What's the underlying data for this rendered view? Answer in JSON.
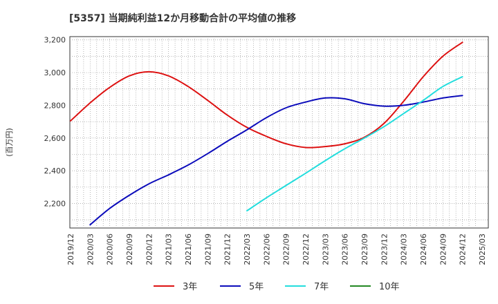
{
  "chart_data": {
    "type": "line",
    "title": "[5357]  当期純利益12か月移動合計の平均値の推移",
    "ylabel": "(百万円)",
    "xlabel": "",
    "x_ticks": [
      "2019/12",
      "2020/03",
      "2020/06",
      "2020/09",
      "2020/12",
      "2021/03",
      "2021/06",
      "2021/09",
      "2021/12",
      "2022/03",
      "2022/06",
      "2022/09",
      "2022/12",
      "2023/03",
      "2023/06",
      "2023/09",
      "2023/12",
      "2024/03",
      "2024/06",
      "2024/09",
      "2024/12",
      "2025/03"
    ],
    "y_ticks": [
      "2,200",
      "2,400",
      "2,600",
      "2,800",
      "3,000",
      "3,200"
    ],
    "ylim": [
      2050,
      3220
    ],
    "grid": true,
    "legend_position": "bottom",
    "series": [
      {
        "name": "3年",
        "color": "#dd1111",
        "points": [
          [
            "2019/12",
            2705
          ],
          [
            "2020/03",
            2815
          ],
          [
            "2020/06",
            2910
          ],
          [
            "2020/09",
            2980
          ],
          [
            "2020/12",
            3005
          ],
          [
            "2021/03",
            2980
          ],
          [
            "2021/06",
            2915
          ],
          [
            "2021/09",
            2830
          ],
          [
            "2021/12",
            2740
          ],
          [
            "2022/03",
            2665
          ],
          [
            "2022/06",
            2610
          ],
          [
            "2022/09",
            2565
          ],
          [
            "2022/12",
            2542
          ],
          [
            "2023/03",
            2548
          ],
          [
            "2023/06",
            2565
          ],
          [
            "2023/09",
            2605
          ],
          [
            "2023/12",
            2690
          ],
          [
            "2024/03",
            2825
          ],
          [
            "2024/06",
            2975
          ],
          [
            "2024/09",
            3100
          ],
          [
            "2024/12",
            3185
          ]
        ]
      },
      {
        "name": "5年",
        "color": "#0b0bbb",
        "points": [
          [
            "2020/03",
            2070
          ],
          [
            "2020/06",
            2170
          ],
          [
            "2020/09",
            2250
          ],
          [
            "2020/12",
            2320
          ],
          [
            "2021/03",
            2375
          ],
          [
            "2021/06",
            2435
          ],
          [
            "2021/09",
            2505
          ],
          [
            "2021/12",
            2580
          ],
          [
            "2022/03",
            2650
          ],
          [
            "2022/06",
            2725
          ],
          [
            "2022/09",
            2785
          ],
          [
            "2022/12",
            2820
          ],
          [
            "2023/03",
            2845
          ],
          [
            "2023/06",
            2840
          ],
          [
            "2023/09",
            2810
          ],
          [
            "2023/12",
            2795
          ],
          [
            "2024/03",
            2800
          ],
          [
            "2024/06",
            2820
          ],
          [
            "2024/09",
            2845
          ],
          [
            "2024/12",
            2860
          ]
        ]
      },
      {
        "name": "7年",
        "color": "#22dddd",
        "points": [
          [
            "2022/03",
            2155
          ],
          [
            "2022/06",
            2235
          ],
          [
            "2022/09",
            2310
          ],
          [
            "2022/12",
            2385
          ],
          [
            "2023/03",
            2462
          ],
          [
            "2023/06",
            2535
          ],
          [
            "2023/09",
            2600
          ],
          [
            "2023/12",
            2670
          ],
          [
            "2024/03",
            2750
          ],
          [
            "2024/06",
            2830
          ],
          [
            "2024/09",
            2915
          ],
          [
            "2024/12",
            2975
          ]
        ]
      },
      {
        "name": "10年",
        "color": "#228822",
        "points": []
      }
    ]
  }
}
